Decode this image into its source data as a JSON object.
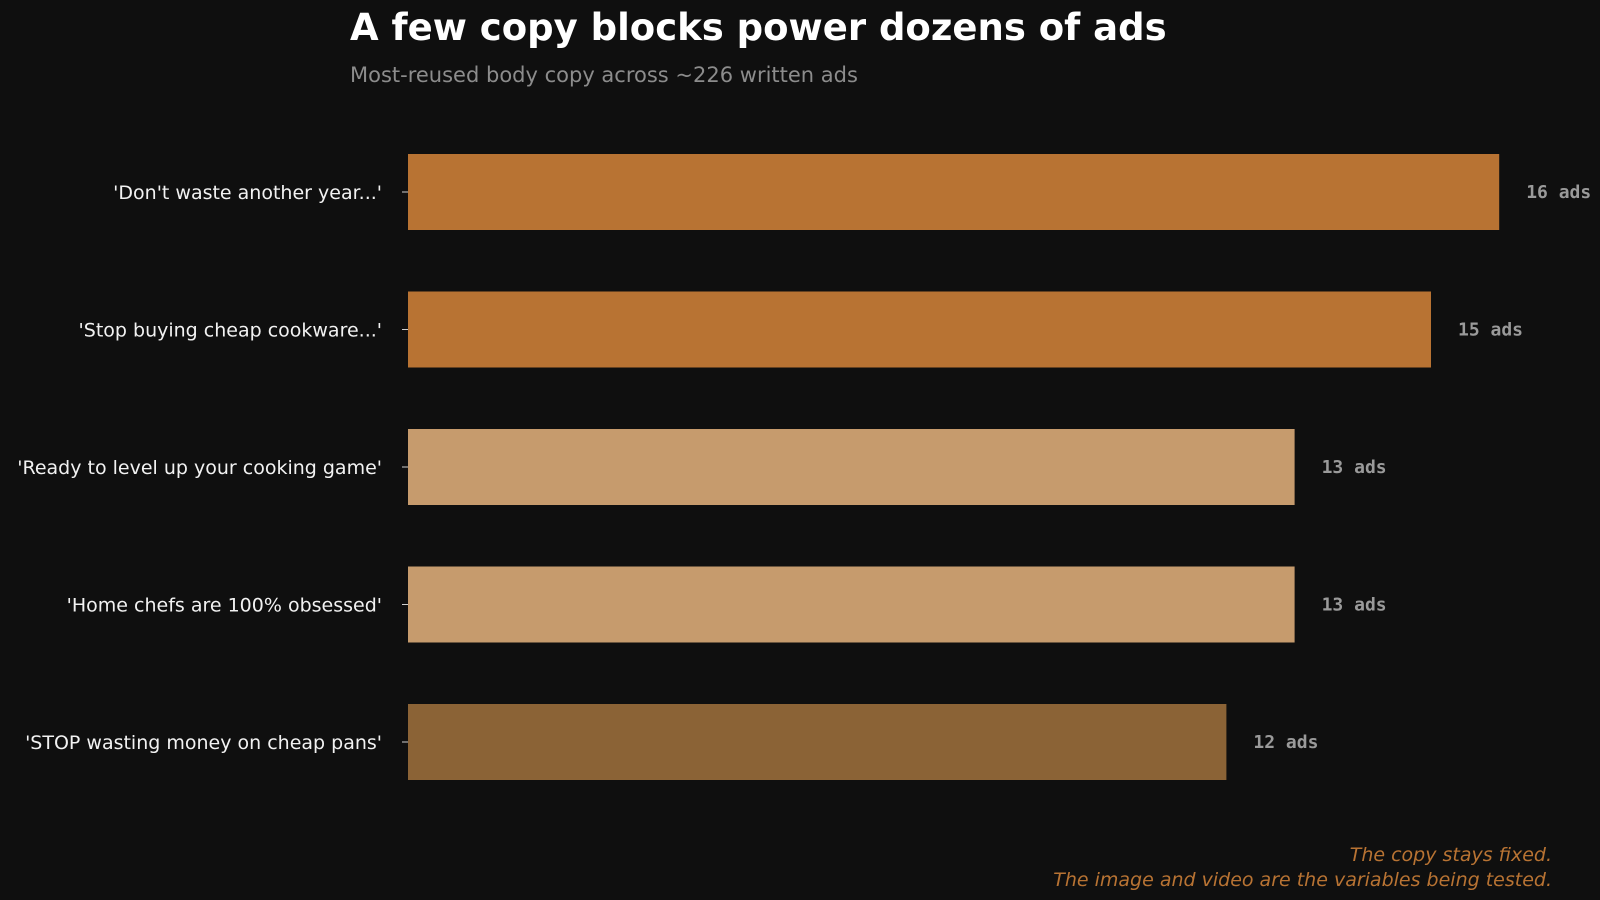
{
  "chart_data": {
    "type": "bar",
    "orientation": "horizontal",
    "title": "A few copy blocks power dozens of ads",
    "subtitle": "Most-reused body copy across ~226 written ads",
    "categories": [
      "'Don't waste another year...'",
      "'Stop buying cheap cookware...'",
      "'Ready to level up your cooking game'",
      "'Home chefs are 100% obsessed'",
      "'STOP wasting money on cheap pans'"
    ],
    "values": [
      16,
      15,
      13,
      13,
      12
    ],
    "value_labels": [
      "16 ads",
      "15 ads",
      "13 ads",
      "13 ads",
      "12 ads"
    ],
    "bar_colors": [
      "#b87333",
      "#b87333",
      "#c69b6d",
      "#c69b6d",
      "#8b6336"
    ],
    "xlim": [
      0,
      16
    ],
    "grid": false,
    "xlabel": "",
    "ylabel": ""
  },
  "annotation": {
    "line1": "The copy stays fixed.",
    "line2": "The image and video are the variables being tested."
  }
}
